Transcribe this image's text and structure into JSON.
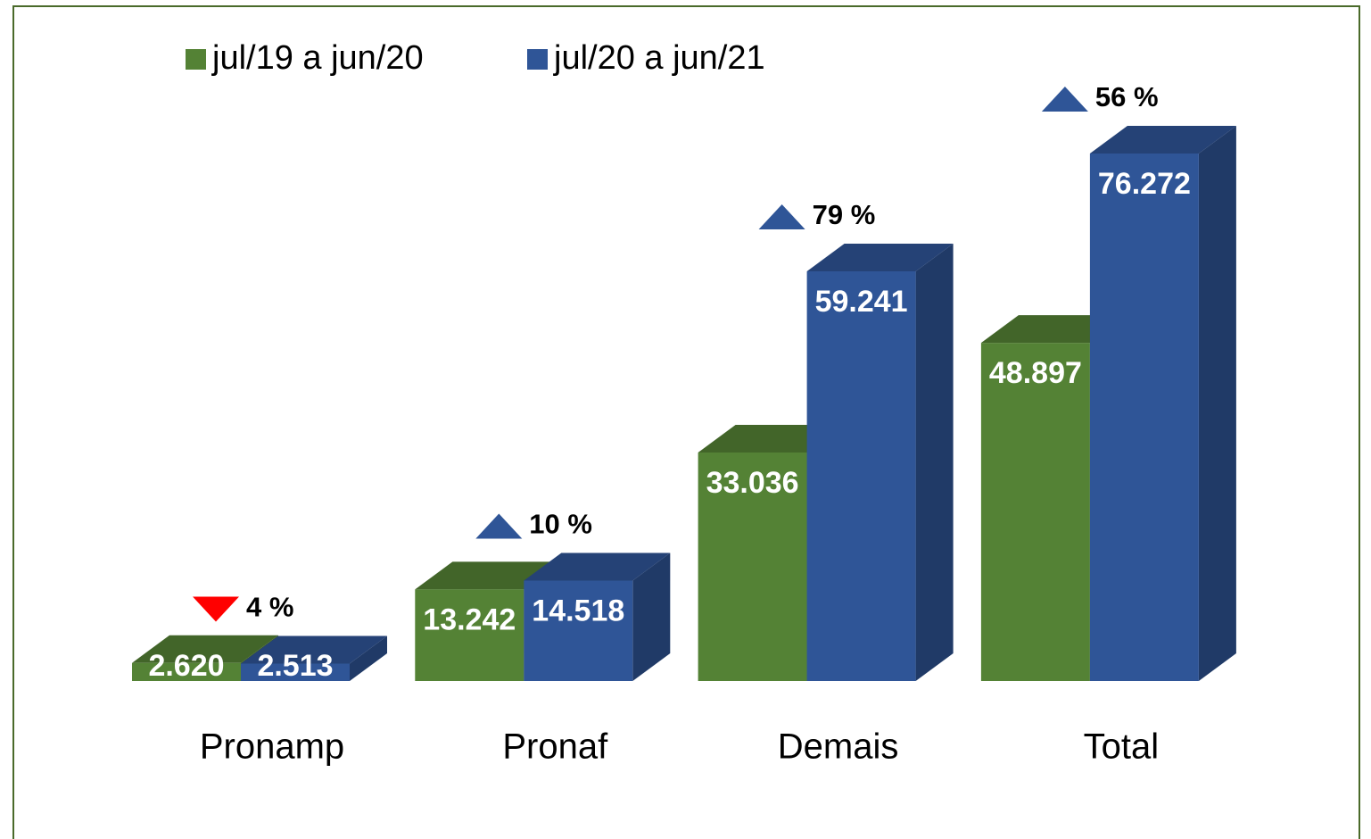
{
  "chart_data": {
    "type": "bar3d",
    "categories": [
      "Pronamp",
      "Pronaf",
      "Demais",
      "Total"
    ],
    "series": [
      {
        "name": "jul/19 a jun/20",
        "color": "#548235",
        "values": [
          2620,
          13242,
          33036,
          48897
        ],
        "value_labels": [
          "2.620",
          "13.242",
          "33.036",
          "48.897"
        ]
      },
      {
        "name": "jul/20 a jun/21",
        "color": "#2f5597",
        "values": [
          2513,
          14518,
          59241,
          76272
        ],
        "value_labels": [
          "2.513",
          "14.518",
          "59.241",
          "76.272"
        ]
      }
    ],
    "annotations": [
      {
        "value": 4,
        "label": "4 %",
        "direction": "down",
        "color": "#ff0000"
      },
      {
        "value": 10,
        "label": "10 %",
        "direction": "up",
        "color": "#2f5597"
      },
      {
        "value": 79,
        "label": "79 %",
        "direction": "up",
        "color": "#2f5597"
      },
      {
        "value": 56,
        "label": "56 %",
        "direction": "up",
        "color": "#2f5597"
      }
    ],
    "legend": "top-left"
  }
}
